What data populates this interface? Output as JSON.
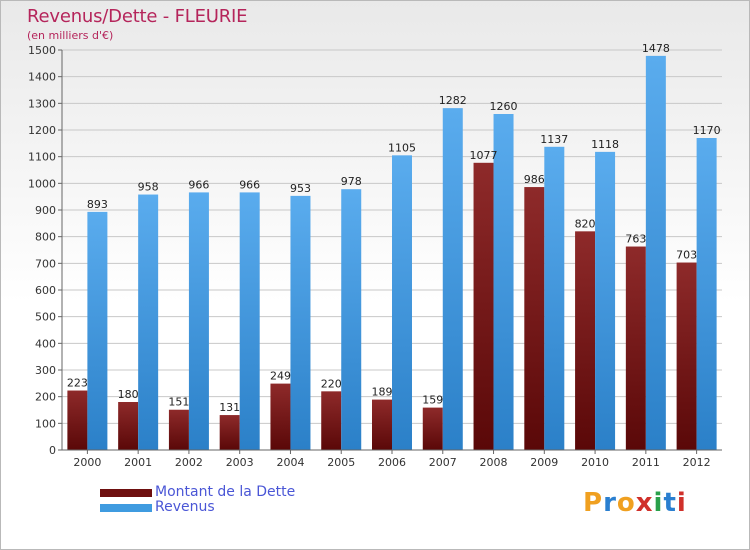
{
  "title": "Revenus/Dette - FLEURIE",
  "subtitle": "(en milliers d'€)",
  "colors": {
    "dette": "#7a1c1c",
    "revenus": "#3f9be0",
    "title": "#b5255b",
    "legend_text": "#4a56d6"
  },
  "legend": [
    {
      "label": "Montant de la Dette",
      "color": "#6e0f0f"
    },
    {
      "label": "Revenus",
      "color": "#3f9be0"
    }
  ],
  "logo": {
    "letters": [
      "P",
      "r",
      "o",
      "x",
      "i",
      "t",
      "i"
    ],
    "colors": [
      "#f0a020",
      "#2a7fd0",
      "#f0a020",
      "#d0302a",
      "#2aa04a",
      "#2a7fd0",
      "#d0302a"
    ]
  },
  "chart_data": {
    "type": "bar",
    "categories": [
      "2000",
      "2001",
      "2002",
      "2003",
      "2004",
      "2005",
      "2006",
      "2007",
      "2008",
      "2009",
      "2010",
      "2011",
      "2012"
    ],
    "series": [
      {
        "name": "Montant de la Dette",
        "values": [
          223,
          180,
          151,
          131,
          249,
          220,
          189,
          159,
          1077,
          986,
          820,
          763,
          703
        ]
      },
      {
        "name": "Revenus",
        "values": [
          893,
          958,
          966,
          966,
          953,
          978,
          1105,
          1282,
          1260,
          1137,
          1118,
          1478,
          1170
        ]
      }
    ],
    "ylim": [
      0,
      1500
    ],
    "yticks": [
      0,
      100,
      200,
      300,
      400,
      500,
      600,
      700,
      800,
      900,
      1000,
      1100,
      1200,
      1300,
      1400,
      1500
    ],
    "grid": true,
    "legend_position": "bottom-left"
  }
}
